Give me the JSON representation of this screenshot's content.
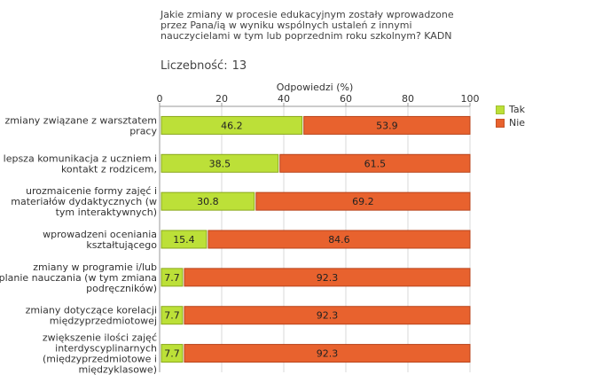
{
  "title_lines": [
    "Jakie zmiany w procesie edukacyjnym zostały wprowadzone",
    "przez Pana/ią w wyniku wspólnych ustaleń z innymi",
    "nauczycielami w tym lub poprzednim roku szkolnym? KADN"
  ],
  "count_label": "Liczebność:",
  "count_value": "13",
  "chart_data": {
    "type": "bar",
    "orientation": "horizontal",
    "stacked": true,
    "xlabel": "Odpowiedzi (%)",
    "xlim": [
      0,
      100
    ],
    "xticks": [
      0,
      20,
      40,
      60,
      80,
      100
    ],
    "grid": true,
    "legend_position": "right",
    "categories": [
      [
        "zmiany związane z warsztatem",
        "pracy"
      ],
      [
        "lepsza komunikacja z uczniem i",
        "kontakt z rodzicem,"
      ],
      [
        "urozmaicenie formy zajęć i",
        "materiałów dydaktycznych (w",
        "tym interaktywnych)"
      ],
      [
        "wprowadzeni oceniania",
        "kształtującego"
      ],
      [
        "zmiany w programie i/lub",
        "planie nauczania (w tym zmiana",
        "podręczników)"
      ],
      [
        "zmiany dotyczące korelacji",
        "międzyprzedmiotowej"
      ],
      [
        "zwiększenie ilości zajęć",
        "interdyscyplinarnych",
        "(międzyprzedmiotowe i",
        "międzyklasowe)"
      ]
    ],
    "series": [
      {
        "name": "Tak",
        "color": "#bce038",
        "values": [
          46.2,
          38.5,
          30.8,
          15.4,
          7.7,
          7.7,
          7.7
        ]
      },
      {
        "name": "Nie",
        "color": "#e8622e",
        "values": [
          53.9,
          61.5,
          69.2,
          84.6,
          92.3,
          92.3,
          92.3
        ]
      }
    ]
  }
}
